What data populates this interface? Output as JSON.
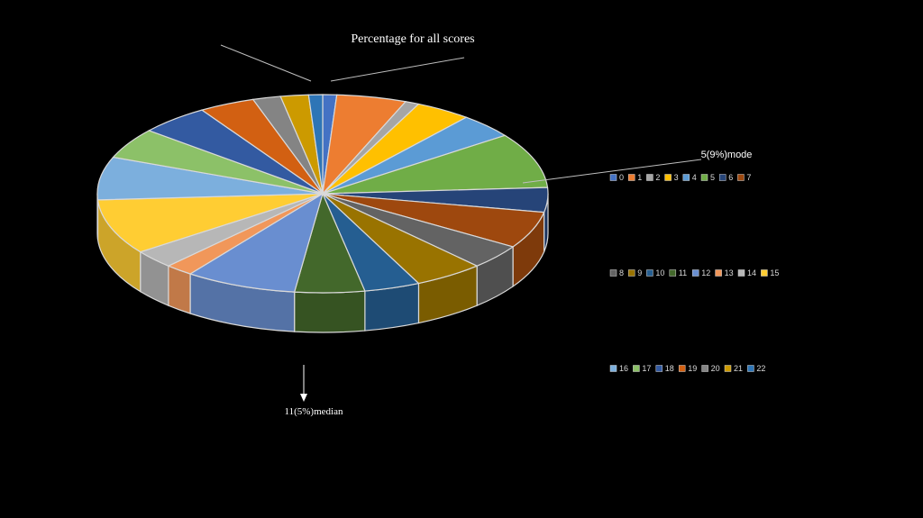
{
  "chart_data": {
    "type": "pie3d",
    "title": "Percentage for all scores",
    "categories": [
      "0",
      "1",
      "2",
      "3",
      "4",
      "5",
      "6",
      "7",
      "8",
      "9",
      "10",
      "11",
      "12",
      "13",
      "14",
      "15",
      "16",
      "17",
      "18",
      "19",
      "20",
      "21",
      "22"
    ],
    "values": [
      1,
      5,
      1,
      4,
      4,
      9,
      4,
      6,
      4,
      5,
      4,
      5,
      8,
      2,
      3,
      9,
      7,
      5,
      5,
      4,
      2,
      2,
      1
    ],
    "colors": [
      "#4472c4",
      "#ed7d31",
      "#a5a5a5",
      "#ffc000",
      "#5b9bd5",
      "#70ad47",
      "#264478",
      "#9e480e",
      "#636363",
      "#997300",
      "#255e91",
      "#43682b",
      "#698ed0",
      "#f1975a",
      "#b7b7b7",
      "#ffcd33",
      "#7cafdd",
      "#8cc168",
      "#335aa1",
      "#d26012",
      "#848484",
      "#cc9a00",
      "#2e75b6"
    ],
    "annotations": [
      "5(9%)mode",
      "11(5%)median"
    ],
    "legend": "right"
  }
}
